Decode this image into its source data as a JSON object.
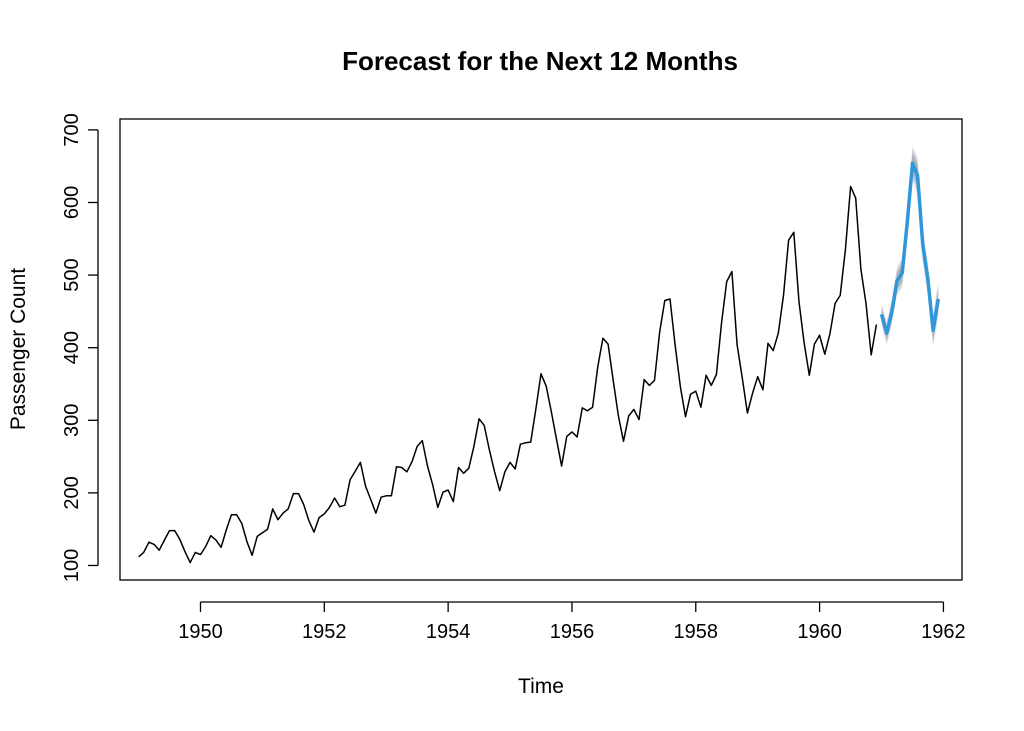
{
  "chart_data": {
    "type": "line",
    "title": "Forecast for the Next 12 Months",
    "xlabel": "Time",
    "ylabel": "Passenger Count",
    "xlim": [
      1948.7,
      1962.3
    ],
    "ylim": [
      80,
      715
    ],
    "x_ticks": [
      1950,
      1952,
      1954,
      1956,
      1958,
      1960,
      1962
    ],
    "y_ticks": [
      100,
      200,
      300,
      400,
      500,
      600,
      700
    ],
    "grid": false,
    "legend": "none",
    "colors": {
      "observed": "#000000",
      "forecast": "#2e98d8",
      "interval_outer": "#d8d9e2",
      "interval_inner": "#b0b2be",
      "frame": "#000000"
    },
    "series": [
      {
        "x_start": 1949.0,
        "x_step": 0.0833333,
        "values": [
          112,
          118,
          132,
          129,
          121,
          135,
          148,
          148,
          136,
          119,
          104,
          118,
          115,
          126,
          141,
          135,
          125,
          149,
          170,
          170,
          158,
          133,
          114,
          140,
          145,
          150,
          178,
          163,
          172,
          178,
          199,
          199,
          184,
          162,
          146,
          166,
          171,
          180,
          193,
          181,
          183,
          218,
          230,
          242,
          209,
          191,
          172,
          194,
          196,
          196,
          236,
          235,
          229,
          243,
          264,
          272,
          237,
          211,
          180,
          201,
          204,
          188,
          235,
          227,
          234,
          264,
          302,
          293,
          259,
          229,
          203,
          229,
          242,
          233,
          267,
          269,
          270,
          315,
          364,
          347,
          312,
          274,
          237,
          278,
          284,
          277,
          317,
          313,
          318,
          374,
          413,
          405,
          355,
          306,
          271,
          306,
          315,
          301,
          356,
          348,
          355,
          422,
          465,
          467,
          404,
          347,
          305,
          336,
          340,
          318,
          362,
          348,
          363,
          435,
          491,
          505,
          404,
          359,
          310,
          337,
          360,
          342,
          406,
          396,
          420,
          472,
          548,
          559,
          463,
          407,
          362,
          405,
          417,
          391,
          419,
          461,
          472,
          535,
          622,
          606,
          508,
          461,
          390,
          432
        ]
      },
      {
        "x_start": 1961.0,
        "x_step": 0.0833333,
        "values": [
          446,
          420,
          449,
          492,
          503,
          573,
          654,
          637,
          541,
          494,
          424,
          467
        ],
        "lower80": [
          437,
          410,
          438,
          480,
          490,
          559,
          639,
          621,
          526,
          479,
          410,
          452
        ],
        "upper80": [
          455,
          430,
          460,
          504,
          516,
          587,
          669,
          653,
          556,
          509,
          438,
          482
        ],
        "lower95": [
          432,
          404,
          432,
          473,
          483,
          551,
          631,
          612,
          518,
          471,
          402,
          444
        ],
        "upper95": [
          460,
          436,
          466,
          511,
          523,
          595,
          677,
          662,
          564,
          517,
          446,
          490
        ]
      }
    ]
  }
}
